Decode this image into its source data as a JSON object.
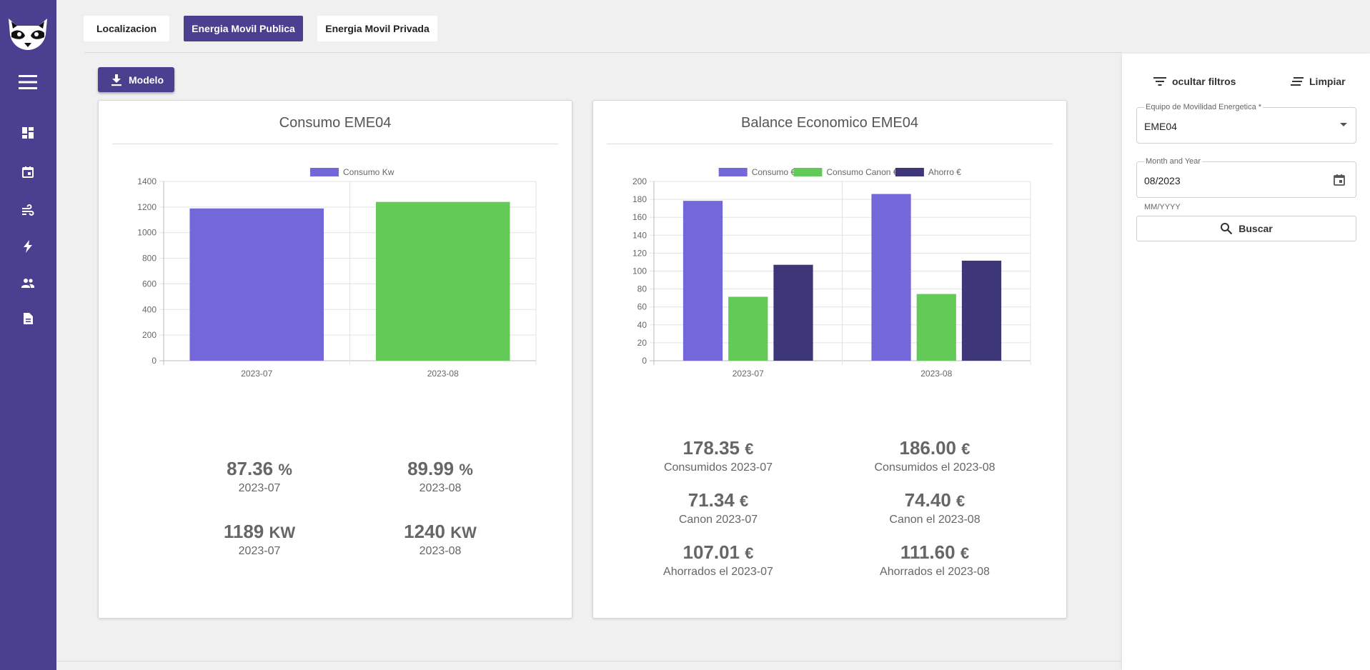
{
  "nav": {
    "tabs": [
      {
        "label": "Localizacion",
        "active": false
      },
      {
        "label": "Energia Movil Publica",
        "active": true
      },
      {
        "label": "Energia Movil Privada",
        "active": false
      }
    ],
    "sidebar_icons": [
      "menu-icon",
      "dashboard-icon",
      "calendar-icon",
      "wind-icon",
      "lightning-icon",
      "people-icon",
      "document-icon"
    ]
  },
  "toolbar": {
    "modelo_label": "Modelo"
  },
  "colors": {
    "primary": "#4b3f8f",
    "purple_bar": "#7367d9",
    "green_bar": "#63c957",
    "dark_bar": "#3d3679"
  },
  "consumo_card": {
    "title": "Consumo EME04",
    "stats": [
      {
        "value": "87.36",
        "unit": "%",
        "label": "2023-07"
      },
      {
        "value": "89.99",
        "unit": "%",
        "label": "2023-08"
      },
      {
        "value": "1189",
        "unit": "KW",
        "label": "2023-07"
      },
      {
        "value": "1240",
        "unit": "KW",
        "label": "2023-08"
      }
    ]
  },
  "balance_card": {
    "title": "Balance Economico EME04",
    "stats": [
      {
        "value": "178.35",
        "unit": "€",
        "label": "Consumidos 2023-07"
      },
      {
        "value": "186.00",
        "unit": "€",
        "label": "Consumidos el 2023-08"
      },
      {
        "value": "71.34",
        "unit": "€",
        "label": "Canon 2023-07"
      },
      {
        "value": "74.40",
        "unit": "€",
        "label": "Canon el 2023-08"
      },
      {
        "value": "107.01",
        "unit": "€",
        "label": "Ahorrados el 2023-07"
      },
      {
        "value": "111.60",
        "unit": "€",
        "label": "Ahorrados el 2023-08"
      }
    ]
  },
  "chart_data": [
    {
      "type": "bar",
      "title": "",
      "categories": [
        "2023-07",
        "2023-08"
      ],
      "series": [
        {
          "name": "Consumo Kw",
          "values": [
            1189,
            1240
          ],
          "colors": [
            "#7367d9",
            "#63c957"
          ]
        }
      ],
      "ylim": [
        0,
        1400
      ],
      "yticks": [
        0,
        200,
        400,
        600,
        800,
        1000,
        1200,
        1400
      ],
      "grid": true,
      "legend": "top"
    },
    {
      "type": "bar",
      "title": "",
      "categories": [
        "2023-07",
        "2023-08"
      ],
      "series": [
        {
          "name": "Consumo €",
          "values": [
            178.35,
            186.0
          ],
          "color": "#7367d9"
        },
        {
          "name": "Consumo Canon €",
          "values": [
            71.34,
            74.4
          ],
          "color": "#63c957"
        },
        {
          "name": "Ahorro €",
          "values": [
            107.01,
            111.6
          ],
          "color": "#3d3679"
        }
      ],
      "ylim": [
        0,
        200
      ],
      "yticks": [
        0,
        20,
        40,
        60,
        80,
        100,
        120,
        140,
        160,
        180,
        200
      ],
      "grid": true,
      "legend": "top"
    }
  ],
  "filters": {
    "hide_label": "ocultar filtros",
    "clear_label": "Limpiar",
    "equipo_label": "Equipo de Movilidad Energetica *",
    "equipo_value": "EME04",
    "month_label": "Month and Year",
    "month_value": "08/2023",
    "month_hint": "MM/YYYY",
    "search_label": "Buscar"
  }
}
